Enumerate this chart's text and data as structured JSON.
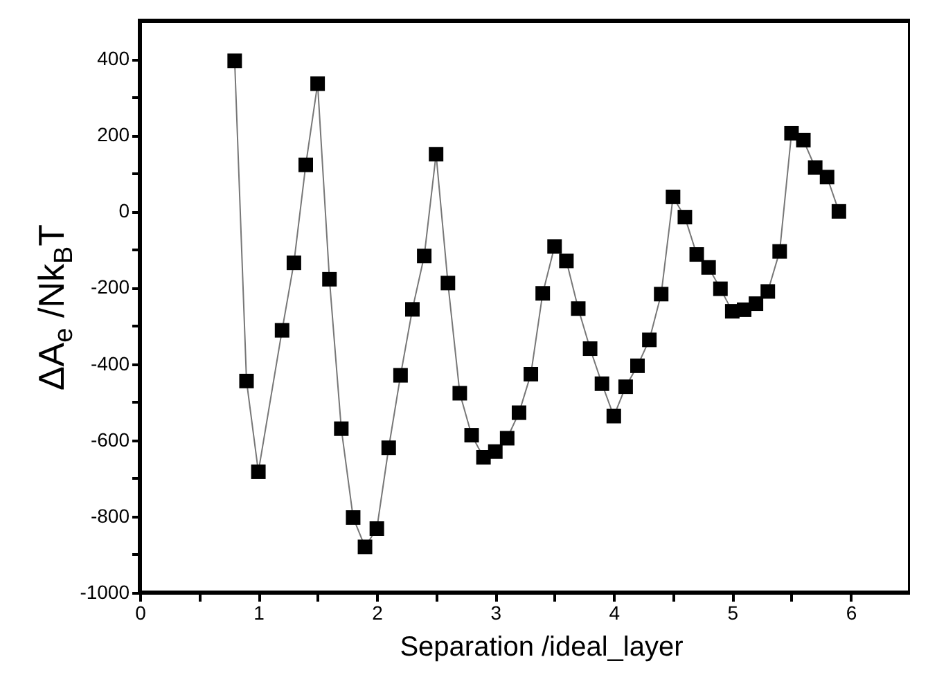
{
  "chart_data": {
    "type": "line",
    "xlabel": "Separation /ideal_layer",
    "ylabel": "ΔA$_{e}$ /Nk$_{B}$T",
    "x": [
      0.8,
      0.9,
      1.0,
      1.2,
      1.3,
      1.4,
      1.5,
      1.6,
      1.7,
      1.8,
      1.9,
      2.0,
      2.1,
      2.2,
      2.3,
      2.4,
      2.5,
      2.6,
      2.7,
      2.8,
      2.9,
      3.0,
      3.1,
      3.2,
      3.3,
      3.4,
      3.5,
      3.6,
      3.7,
      3.8,
      3.9,
      4.0,
      4.1,
      4.2,
      4.3,
      4.4,
      4.5,
      4.6,
      4.7,
      4.8,
      4.9,
      5.0,
      5.1,
      5.2,
      5.3,
      5.4,
      5.5,
      5.6,
      5.7,
      5.8,
      5.9
    ],
    "series": [
      {
        "color": "#000000",
        "values": [
          395,
          -445,
          -683,
          -312,
          -135,
          122,
          335,
          -178,
          -570,
          -803,
          -880,
          -832,
          -620,
          -430,
          -257,
          -117,
          150,
          -188,
          -477,
          -587,
          -645,
          -630,
          -595,
          -528,
          -427,
          -215,
          -92,
          -130,
          -255,
          -360,
          -452,
          -537,
          -460,
          -405,
          -337,
          -217,
          38,
          -15,
          -113,
          -147,
          -203,
          -262,
          -258,
          -242,
          -210,
          -105,
          205,
          187,
          115,
          90,
          0
        ]
      }
    ],
    "xlim": [
      0,
      6.5
    ],
    "xticks": [
      0,
      {
        "value": 0.5,
        "label": null
      },
      1,
      {
        "value": 1.5,
        "label": null
      },
      2,
      {
        "value": 2.5,
        "label": null
      },
      3,
      {
        "value": 3.5,
        "label": null
      },
      4,
      {
        "value": 4.5,
        "label": null
      },
      5,
      {
        "value": 5.5,
        "label": null
      },
      6
    ],
    "ylim": [
      -1000,
      500
    ],
    "yticks": [
      -1000,
      {
        "value": -900,
        "label": null
      },
      -800,
      {
        "value": -700,
        "label": null
      },
      -600,
      {
        "value": -500,
        "label": null
      },
      -400,
      {
        "value": -300,
        "label": null
      },
      -200,
      {
        "value": -100,
        "label": null
      },
      0,
      {
        "value": 100,
        "label": null
      },
      200,
      {
        "value": 300,
        "label": null
      },
      400
    ],
    "marker": "square",
    "line_style": "solid",
    "grid": false
  }
}
